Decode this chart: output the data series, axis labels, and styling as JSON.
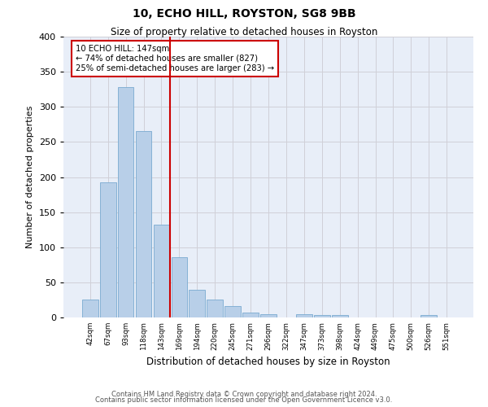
{
  "title1": "10, ECHO HILL, ROYSTON, SG8 9BB",
  "title2": "Size of property relative to detached houses in Royston",
  "xlabel": "Distribution of detached houses by size in Royston",
  "ylabel": "Number of detached properties",
  "bar_labels": [
    "42sqm",
    "67sqm",
    "93sqm",
    "118sqm",
    "143sqm",
    "169sqm",
    "194sqm",
    "220sqm",
    "245sqm",
    "271sqm",
    "296sqm",
    "322sqm",
    "347sqm",
    "373sqm",
    "398sqm",
    "424sqm",
    "449sqm",
    "475sqm",
    "500sqm",
    "526sqm",
    "551sqm"
  ],
  "bar_values": [
    25,
    193,
    328,
    265,
    132,
    86,
    39,
    25,
    16,
    7,
    5,
    0,
    5,
    3,
    3,
    0,
    0,
    0,
    0,
    4,
    0
  ],
  "bar_color": "#b8cfe8",
  "bar_edge_color": "#7aaad0",
  "vline_x": 4.5,
  "vline_color": "#cc0000",
  "annotation_title": "10 ECHO HILL: 147sqm",
  "annotation_line1": "← 74% of detached houses are smaller (827)",
  "annotation_line2": "25% of semi-detached houses are larger (283) →",
  "annotation_box_color": "#cc0000",
  "ylim": [
    0,
    400
  ],
  "yticks": [
    0,
    50,
    100,
    150,
    200,
    250,
    300,
    350,
    400
  ],
  "grid_color": "#d0d0d8",
  "bg_color": "#e8eef8",
  "footer1": "Contains HM Land Registry data © Crown copyright and database right 2024.",
  "footer2": "Contains public sector information licensed under the Open Government Licence v3.0."
}
